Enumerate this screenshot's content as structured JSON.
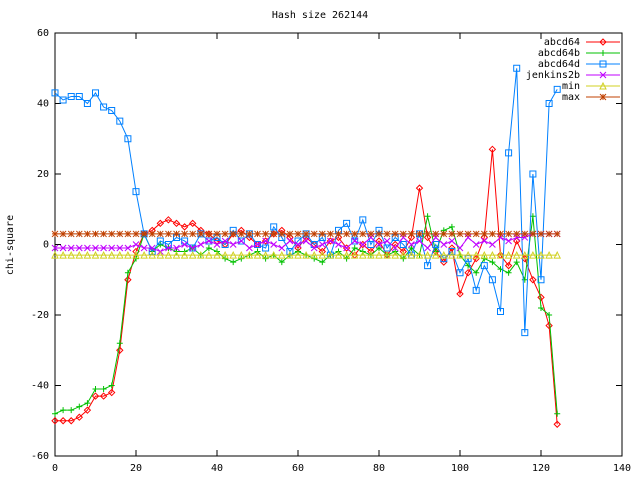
{
  "chart_data": {
    "type": "line",
    "title": "Hash size 262144",
    "y_label": "chi-square",
    "xlim": [
      0,
      140
    ],
    "xticks": [
      0,
      20,
      40,
      60,
      80,
      100,
      120,
      140
    ],
    "ylim": [
      -60,
      60
    ],
    "yticks": [
      -60,
      -40,
      -20,
      0,
      20,
      40,
      60
    ],
    "legend": "top right",
    "x": [
      0,
      2,
      4,
      6,
      8,
      10,
      12,
      14,
      16,
      18,
      20,
      22,
      24,
      26,
      28,
      30,
      32,
      34,
      36,
      38,
      40,
      42,
      44,
      46,
      48,
      50,
      52,
      54,
      56,
      58,
      60,
      62,
      64,
      66,
      68,
      70,
      72,
      74,
      76,
      78,
      80,
      82,
      84,
      86,
      88,
      90,
      92,
      94,
      96,
      98,
      100,
      102,
      104,
      106,
      108,
      110,
      112,
      114,
      116,
      118,
      120,
      122,
      124
    ],
    "series": [
      {
        "name": "abcd64",
        "color": "#ff0000",
        "marker": "diamond",
        "values": [
          -50,
          -50,
          -50,
          -49,
          -47,
          -43,
          -43,
          -42,
          -30,
          -10,
          -2,
          3,
          4,
          6,
          7,
          6,
          5,
          6,
          4,
          3,
          1,
          0,
          3,
          4,
          2,
          0,
          1,
          3,
          4,
          2,
          -1,
          2,
          0,
          -2,
          1,
          2,
          -1,
          -3,
          0,
          -2,
          1,
          -3,
          0,
          -2,
          2,
          16,
          2,
          -2,
          -5,
          -1,
          -14,
          -8,
          -4,
          2,
          27,
          -3,
          -6,
          1,
          -4,
          -10,
          -15,
          -23,
          -51
        ]
      },
      {
        "name": "abcd64b",
        "color": "#00c000",
        "marker": "plus",
        "values": [
          -48,
          -47,
          -47,
          -46,
          -45,
          -41,
          -41,
          -40,
          -28,
          -8,
          -4,
          3,
          -2,
          0,
          -1,
          -2,
          -2,
          -1,
          -3,
          -1,
          -2,
          -4,
          -5,
          -4,
          -3,
          -2,
          -4,
          -3,
          -5,
          -3,
          -2,
          -3,
          -4,
          -5,
          -3,
          -2,
          -4,
          -1,
          -2,
          -3,
          -1,
          -3,
          -2,
          -4,
          -1,
          -3,
          8,
          -2,
          4,
          5,
          -3,
          -6,
          -8,
          -4,
          -5,
          -7,
          -8,
          -5,
          -10,
          8,
          -18,
          -20,
          -48
        ]
      },
      {
        "name": "abcd64d",
        "color": "#0080ff",
        "marker": "square",
        "values": [
          43,
          41,
          42,
          42,
          40,
          43,
          39,
          38,
          35,
          30,
          15,
          3,
          -2,
          1,
          0,
          2,
          1,
          -1,
          3,
          1,
          2,
          0,
          4,
          1,
          3,
          0,
          -1,
          5,
          2,
          -2,
          1,
          3,
          0,
          2,
          -3,
          4,
          6,
          1,
          7,
          0,
          4,
          -1,
          2,
          0,
          -3,
          3,
          -6,
          0,
          -4,
          -2,
          -8,
          -4,
          -13,
          -6,
          -10,
          -19,
          26,
          50,
          -25,
          20,
          -10,
          40,
          44
        ]
      },
      {
        "name": "jenkins2b",
        "color": "#c000ff",
        "marker": "cross",
        "values": [
          -1,
          -1,
          -1,
          -1,
          -1,
          -1,
          -1,
          -1,
          -1,
          -1,
          0,
          -1,
          -1,
          -2,
          -1,
          -1,
          0,
          -1,
          0,
          1,
          0,
          1,
          0,
          1,
          -1,
          0,
          1,
          0,
          -1,
          1,
          0,
          1,
          -1,
          0,
          1,
          0,
          -1,
          1,
          0,
          2,
          0,
          1,
          -1,
          2,
          0,
          1,
          -1,
          2,
          0,
          1,
          -1,
          2,
          0,
          1,
          0,
          2,
          1,
          2,
          2,
          3,
          3,
          3,
          3
        ]
      },
      {
        "name": "min",
        "color": "#d0d020",
        "marker": "triangle",
        "values": [
          -3,
          -3,
          -3,
          -3,
          -3,
          -3,
          -3,
          -3,
          -3,
          -3,
          -3,
          -3,
          -3,
          -3,
          -3,
          -3,
          -3,
          -3,
          -3,
          -3,
          -3,
          -3,
          -3,
          -3,
          -3,
          -3,
          -3,
          -3,
          -3,
          -3,
          -3,
          -3,
          -3,
          -3,
          -3,
          -3,
          -3,
          -3,
          -3,
          -3,
          -3,
          -3,
          -3,
          -3,
          -3,
          -3,
          -3,
          -3,
          -3,
          -3,
          -3,
          -3,
          -3,
          -3,
          -3,
          -3,
          -3,
          -3,
          -3,
          -3,
          -3,
          -3,
          -3
        ]
      },
      {
        "name": "max",
        "color": "#c04000",
        "marker": "star",
        "values": [
          3,
          3,
          3,
          3,
          3,
          3,
          3,
          3,
          3,
          3,
          3,
          3,
          3,
          3,
          3,
          3,
          3,
          3,
          3,
          3,
          3,
          3,
          3,
          3,
          3,
          3,
          3,
          3,
          3,
          3,
          3,
          3,
          3,
          3,
          3,
          3,
          3,
          3,
          3,
          3,
          3,
          3,
          3,
          3,
          3,
          3,
          3,
          3,
          3,
          3,
          3,
          3,
          3,
          3,
          3,
          3,
          3,
          3,
          3,
          3,
          3,
          3,
          3
        ]
      }
    ]
  }
}
